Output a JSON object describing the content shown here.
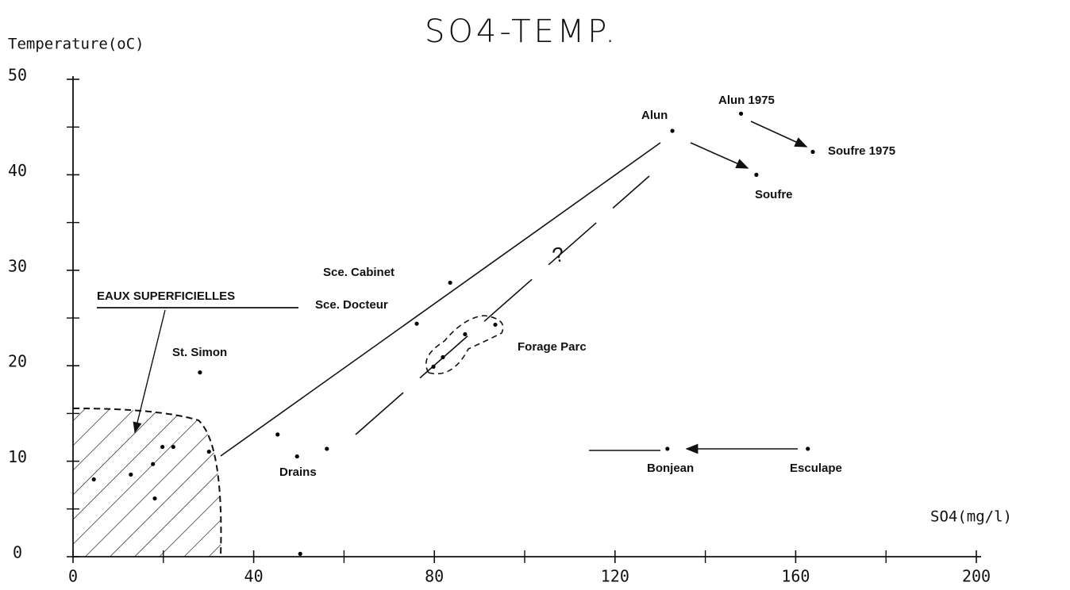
{
  "chart_data": {
    "type": "scatter",
    "title": "SO4-TEMP.",
    "ylabel": "Temperature(oC)",
    "xlabel": "SO4(mg/l)",
    "x": [
      132.7,
      147.9,
      163.8,
      151.3,
      83.5,
      76.1,
      28.1,
      79.8,
      81.9,
      86.8,
      93.5,
      45.3,
      49.6,
      56.2,
      131.6,
      162.7,
      4.6,
      12.8,
      17.7,
      19.8,
      22.2,
      30.1,
      18.1,
      50.3
    ],
    "values": [
      44.6,
      46.4,
      42.4,
      40.0,
      28.7,
      24.4,
      19.3,
      19.9,
      20.9,
      23.3,
      24.3,
      12.8,
      10.5,
      11.3,
      11.3,
      11.3,
      8.1,
      8.6,
      9.7,
      11.5,
      11.5,
      11.0,
      6.1,
      0.3
    ],
    "color": "#000000",
    "annotations": [
      "Alun",
      "Alun 1975",
      "Soufre 1975",
      "Soufre",
      "Sce. Cabinet",
      "Sce. Docteur",
      "St. Simon",
      "Forage Parc",
      "Drains",
      "Bonjean",
      "Esculape",
      "EAUX SUPERFICIELLES",
      "?"
    ],
    "xlim": [
      0,
      200
    ],
    "ylim": [
      0,
      50
    ],
    "xticks": [
      0,
      40,
      80,
      120,
      160,
      200
    ],
    "yticks": [
      0,
      10,
      20,
      30,
      40,
      50
    ]
  }
}
